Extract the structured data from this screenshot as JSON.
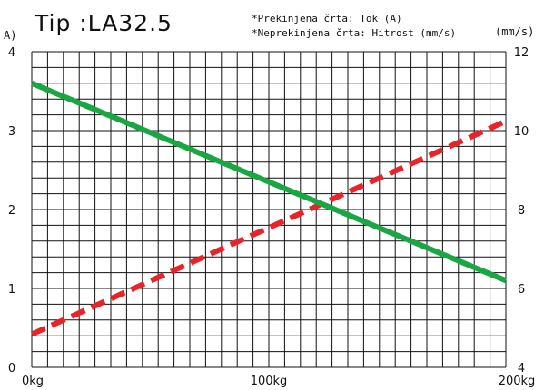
{
  "chart_data": {
    "type": "line",
    "title": "Tip :LA32.5",
    "notes": [
      "*Prekinjena črta: Tok (A)",
      "*Neprekinjena črta: Hitrost (mm/s)"
    ],
    "left_unit": "A)",
    "right_unit": "(mm/s)",
    "x_tick_labels": [
      "0kg",
      "100kg",
      "200kg"
    ],
    "x_ticks": [
      0,
      100,
      200
    ],
    "xlim": [
      0,
      200
    ],
    "left_tick_labels": [
      "0",
      "1",
      "2",
      "3",
      "4"
    ],
    "left_ticks": [
      0,
      1,
      2,
      3,
      4
    ],
    "left_ylim": [
      0,
      4
    ],
    "right_tick_labels": [
      "4",
      "6",
      "8",
      "10",
      "12"
    ],
    "right_ticks": [
      4,
      6,
      8,
      10,
      12
    ],
    "right_ylim": [
      4,
      12
    ],
    "grid": true,
    "series": [
      {
        "name": "Tok (A)",
        "axis": "left",
        "style": "dashed",
        "color": "#e8242a",
        "x": [
          0,
          200
        ],
        "y": [
          0.42,
          3.12
        ]
      },
      {
        "name": "Hitrost (mm/s)",
        "axis": "right",
        "style": "solid",
        "color": "#1aa643",
        "x": [
          0,
          200
        ],
        "y": [
          11.2,
          6.2
        ]
      }
    ]
  }
}
